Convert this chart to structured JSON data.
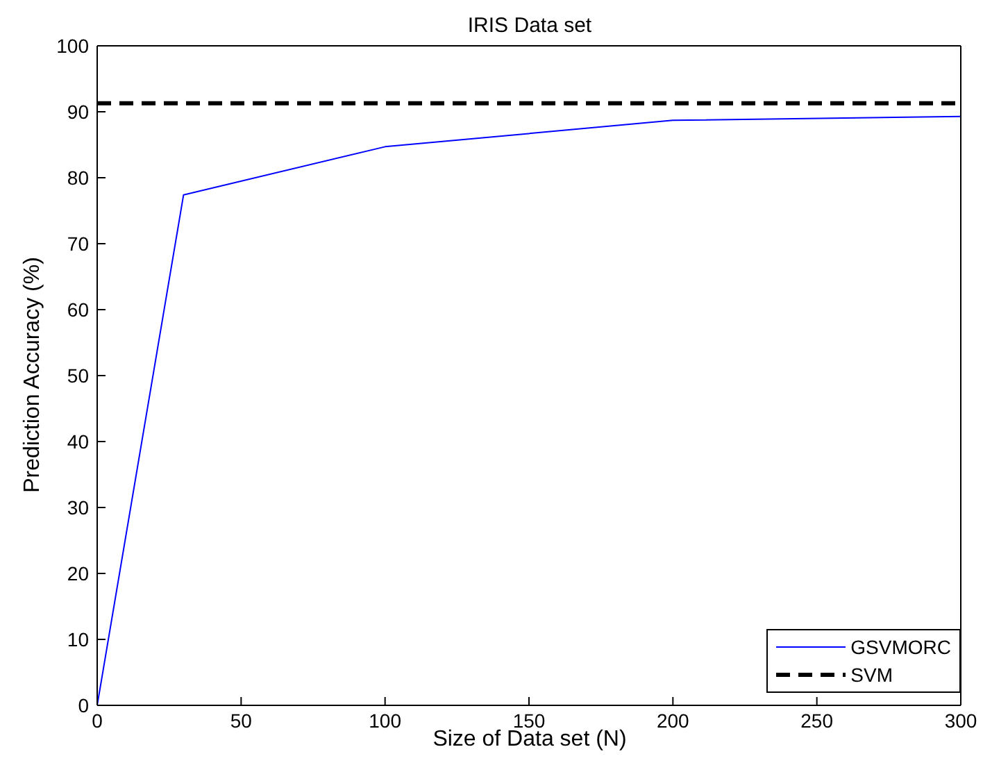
{
  "chart_data": {
    "type": "line",
    "title": "IRIS Data set",
    "xlabel": "Size of Data set (N)",
    "ylabel": "Prediction Accuracy (%)",
    "series": [
      {
        "name": "GSVMORC",
        "color": "#0000ff",
        "x": [
          0,
          30,
          100,
          200,
          300
        ],
        "values": [
          0,
          77.4,
          84.7,
          88.7,
          89.3
        ],
        "line_style": "solid"
      },
      {
        "name": "SVM",
        "color": "#000000",
        "x": [
          0,
          300
        ],
        "values": [
          91.3,
          91.3
        ],
        "line_style": "dashed"
      }
    ],
    "xlim": [
      0,
      300
    ],
    "xticks": [
      0,
      50,
      100,
      150,
      200,
      250,
      300
    ],
    "ylim": [
      0,
      100
    ],
    "yticks": [
      0,
      10,
      20,
      30,
      40,
      50,
      60,
      70,
      80,
      90,
      100
    ],
    "grid": false,
    "legend": "bottom right",
    "marker": "none"
  }
}
